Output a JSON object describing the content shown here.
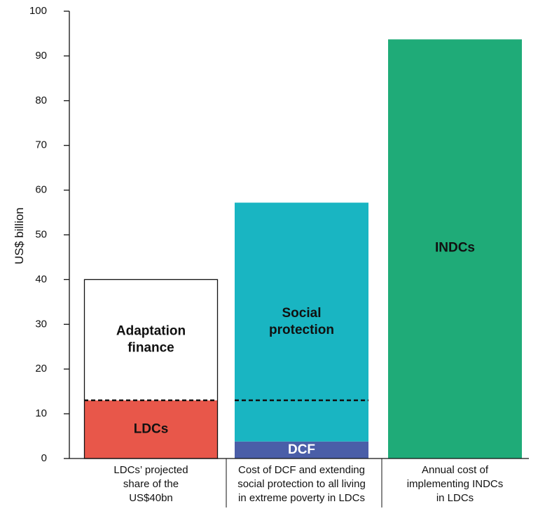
{
  "chart_data": {
    "type": "bar",
    "ylabel": "US$ billion",
    "ylim": [
      0,
      100
    ],
    "yticks": [
      0,
      10,
      20,
      30,
      40,
      50,
      60,
      70,
      80,
      90,
      100
    ],
    "grid": false,
    "bars": [
      {
        "category_lines": [
          "LDCs’ projected",
          "share of the",
          "US$40bn"
        ],
        "total": 40,
        "outlined": true,
        "dashed_line_at": 13,
        "segments": [
          {
            "label_lines": [
              "LDCs"
            ],
            "from": 0,
            "to": 13,
            "color": "#e8574a",
            "text_color": "#111111"
          },
          {
            "label_lines": [
              "Adaptation",
              "finance"
            ],
            "from": 13,
            "to": 40,
            "color": "#ffffff",
            "text_color": "#111111"
          }
        ]
      },
      {
        "category_lines": [
          "Cost of DCF and extending",
          "social protection to all living",
          "in extreme poverty in LDCs"
        ],
        "total": 57.2,
        "outlined": false,
        "dashed_line_at": 13,
        "segments": [
          {
            "label_lines": [
              "DCF"
            ],
            "from": 0,
            "to": 3.8,
            "color": "#4a5ea8",
            "text_color": "#ffffff"
          },
          {
            "label_lines": [
              "Social",
              "protection"
            ],
            "from": 3.8,
            "to": 57.2,
            "color": "#19b5c2",
            "text_color": "#111111"
          }
        ]
      },
      {
        "category_lines": [
          "Annual cost of",
          "implementing INDCs",
          "in LDCs"
        ],
        "total": 93.7,
        "outlined": false,
        "dashed_line_at": null,
        "segments": [
          {
            "label_lines": [
              "INDCs"
            ],
            "from": 0,
            "to": 93.7,
            "color": "#1fab78",
            "text_color": "#111111"
          }
        ]
      }
    ]
  }
}
